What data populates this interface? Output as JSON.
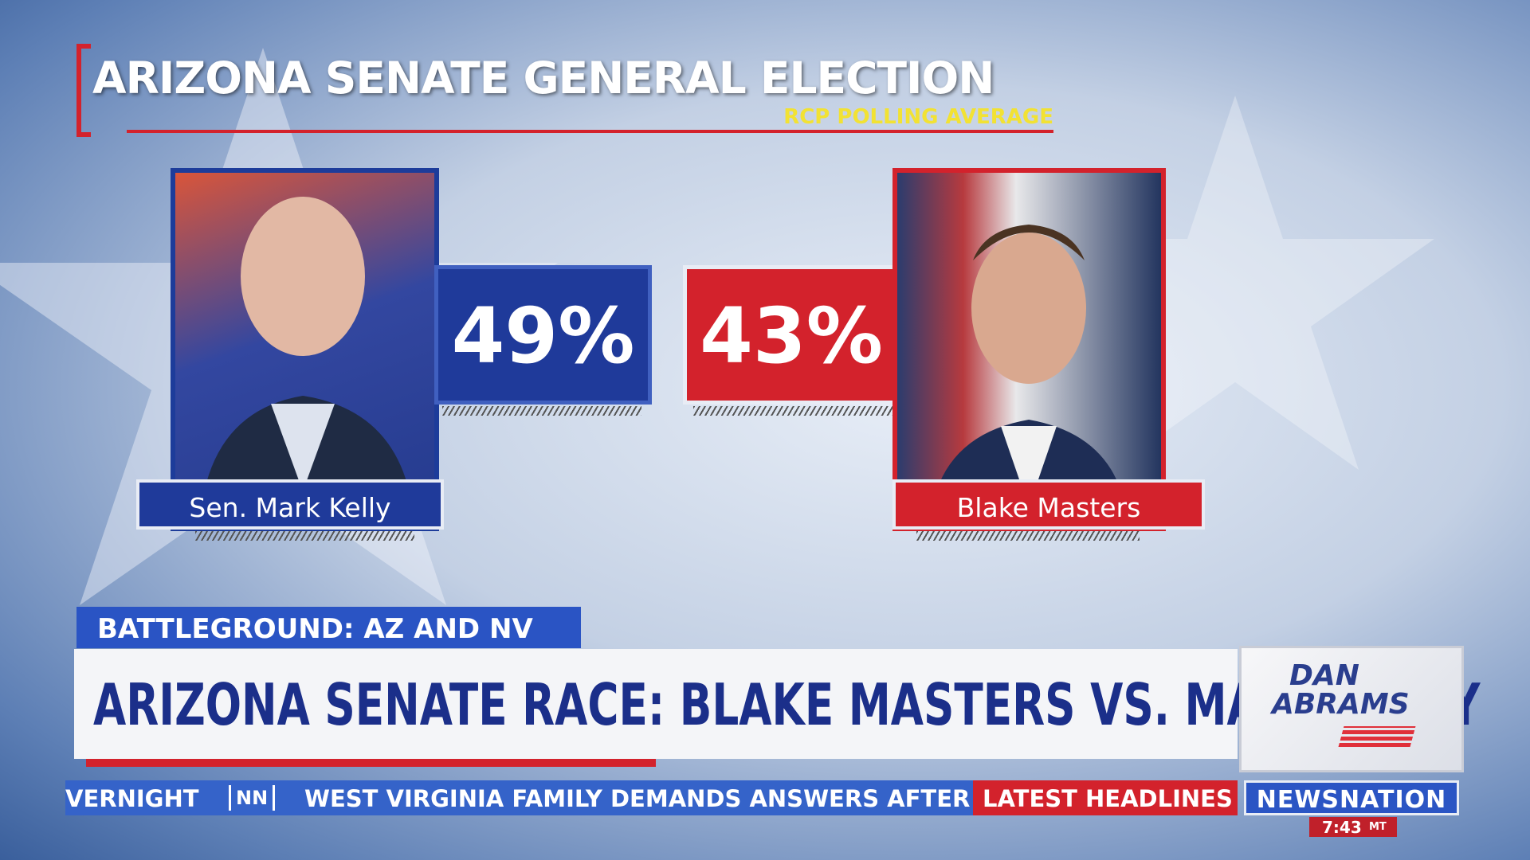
{
  "header": {
    "title": "ARIZONA SENATE GENERAL ELECTION",
    "subtitle": "RCP POLLING AVERAGE"
  },
  "candidates": [
    {
      "name": "Sen. Mark Kelly",
      "percent": "49%"
    },
    {
      "name": "Blake Masters",
      "percent": "43%"
    }
  ],
  "lower_third": {
    "tag": "BATTLEGROUND: AZ AND NV",
    "headline": "ARIZONA SENATE RACE: BLAKE MASTERS VS. MARK KELLY",
    "show_logo": [
      "DAN",
      "ABRAMS"
    ]
  },
  "ticker": {
    "segment": "VERNIGHT",
    "badge": "NN",
    "story": "WEST VIRGINIA FAMILY DEMANDS ANSWERS AFTER PA",
    "section": "LATEST HEADLINES",
    "network": "NEWSNATION",
    "time": "7:43",
    "zone": "MT"
  }
}
